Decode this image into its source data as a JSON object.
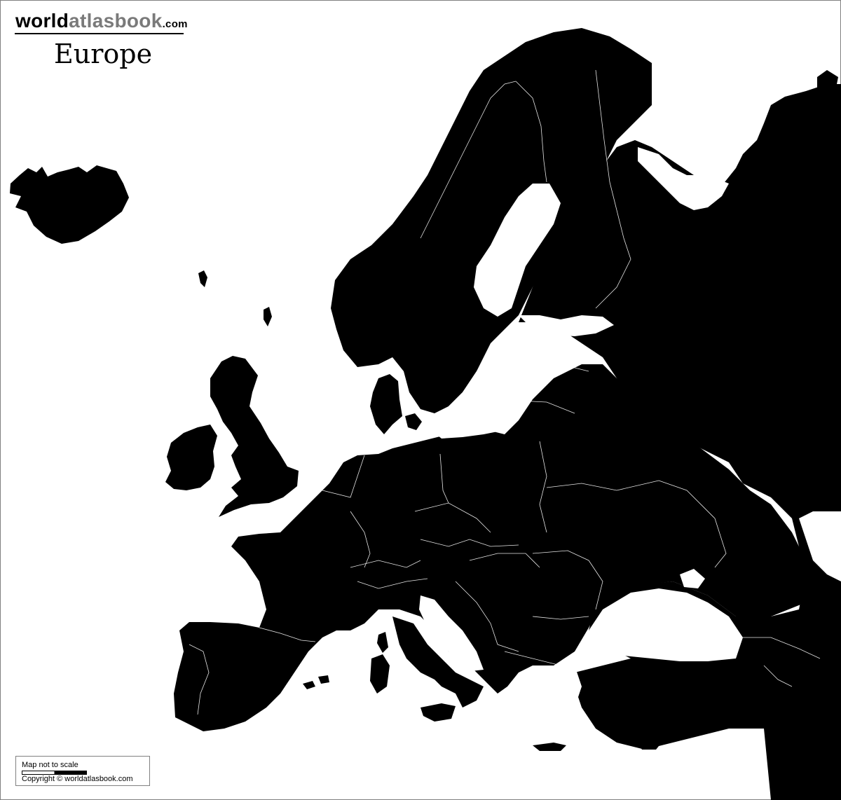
{
  "header": {
    "brand_part1": "world",
    "brand_part2": "atlasbook",
    "brand_part3": ".com",
    "title": "Europe"
  },
  "legend": {
    "scale_note": "Map not to scale",
    "copyright": "Copyright © worldatlasbook.com"
  },
  "colors": {
    "land": "#000000",
    "water": "#ffffff",
    "borders": "#ffffff",
    "brand_accent": "#7a7a7a"
  }
}
